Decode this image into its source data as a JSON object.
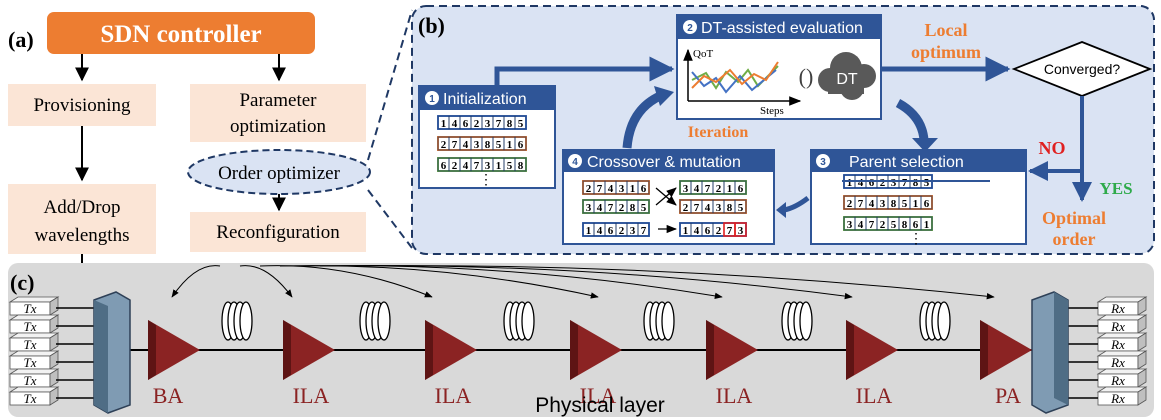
{
  "panels": {
    "a_label": "(a)",
    "b_label": "(b)",
    "c_label": "(c)"
  },
  "controller": {
    "title": "SDN controller"
  },
  "left_column": {
    "provisioning": "Provisioning",
    "add_drop_line1": "Add/Drop",
    "add_drop_line2": "wavelengths"
  },
  "right_column": {
    "param_line1": "Parameter",
    "param_line2": "optimization",
    "order_optimizer": "Order optimizer",
    "reconfiguration": "Reconfiguration"
  },
  "ga": {
    "init_title": "Initialization",
    "init_num": "1",
    "dt_title": "DT-assisted evaluation",
    "dt_num": "2",
    "parent_title": "Parent selection",
    "parent_num": "3",
    "cross_title": "Crossover & mutation",
    "cross_num": "4",
    "qot_label": "QoT",
    "steps_label": "Steps",
    "dt_cloud_label": "DT",
    "cycle_glyph": "()",
    "iteration_label": "Iteration",
    "local_line1": "Local",
    "local_line2": "optimum",
    "converged": "Converged?",
    "no": "NO",
    "yes": "YES",
    "optimal_line1": "Optimal",
    "optimal_line2": "order",
    "ellipsis": "⋮",
    "init_rows": [
      "1 4 6 2 3 7 8 5",
      "2 7 4 3 8 5 1 6",
      "6 2 4 7 3 1 5 8"
    ],
    "parent_rows": [
      "1 4 6 2 3 7 8 5",
      "2 7 4 3 8 5 1 6",
      "3 4 7 2 5 8 6 1"
    ],
    "cross_left_rows": [
      "2 7 4 3 1 6",
      "3 4 7 2 8 5",
      "1 4 6 2 3 7"
    ],
    "cross_right_rows": [
      "3 4 7 2 1 6",
      "2 7 4 3 8 5",
      "1 4 6 2 7 3"
    ]
  },
  "physical": {
    "tx_label": "Tx",
    "rx_label": "Rx",
    "amp_labels": [
      "BA",
      "ILA",
      "ILA",
      "ILA",
      "ILA",
      "ILA",
      "PA"
    ],
    "layer_label": "Physical layer"
  },
  "colors": {
    "controller_orange": "#ED7D31",
    "peach_box": "#FBE5D6",
    "panel_b_fill": "#DAE3F3",
    "header_navy": "#2F5597",
    "amp_red": "#8B2323",
    "phys_gray": "#D9D9D9",
    "row_blue": "#4472C4",
    "row_orange": "#ED7D31",
    "row_green": "#70AD47",
    "no_red": "#E02020",
    "yes_green": "#2EAA4A"
  }
}
